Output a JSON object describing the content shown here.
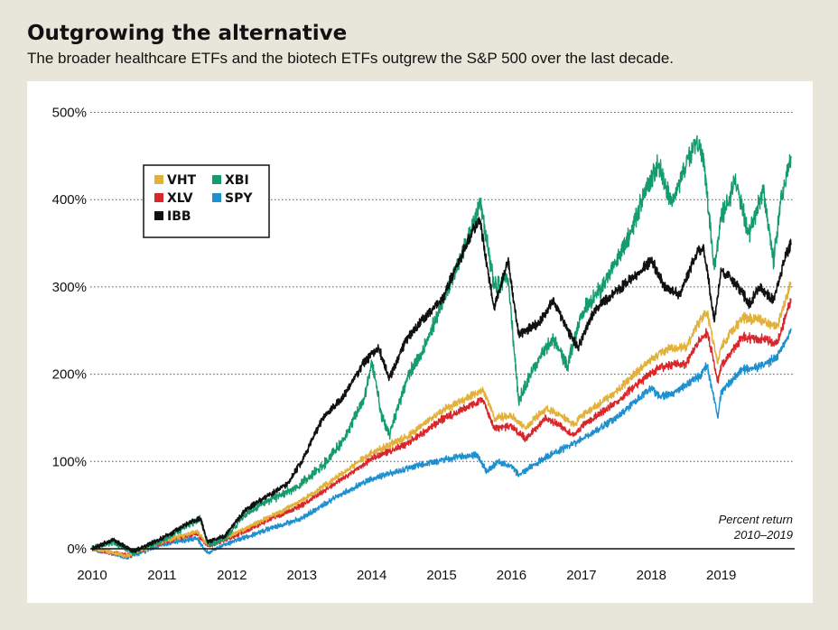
{
  "title": "Outgrowing the alternative",
  "subtitle": "The broader healthcare ETFs and the biotech ETFs outgrew the S&P 500 over the last decade.",
  "note_line1": "Percent return",
  "note_line2": "2010–2019",
  "chart_data": {
    "type": "line",
    "title": "Outgrowing the alternative",
    "subtitle": "The broader healthcare ETFs and the biotech ETFs outgrew the S&P 500 over the last decade.",
    "xlabel": "",
    "ylabel": "",
    "xlim": [
      2010,
      2020.05
    ],
    "ylim": [
      -15,
      520
    ],
    "y_ticks": [
      0,
      100,
      200,
      300,
      400,
      500
    ],
    "y_tick_labels": [
      "0%",
      "100%",
      "200%",
      "300%",
      "400%",
      "500%"
    ],
    "x_ticks": [
      2010,
      2011,
      2012,
      2013,
      2014,
      2015,
      2016,
      2017,
      2018,
      2019
    ],
    "x_tick_labels": [
      "2010",
      "2011",
      "2012",
      "2013",
      "2014",
      "2015",
      "2016",
      "2017",
      "2018",
      "2019"
    ],
    "grid": "horizontal dotted",
    "legend_position": "top-left",
    "annotation": "Percent return 2010–2019",
    "series": [
      {
        "name": "VHT",
        "color": "#e2b13c",
        "x": [
          2010.0,
          2010.5,
          2011.0,
          2011.5,
          2011.65,
          2011.9,
          2012.5,
          2013.0,
          2013.5,
          2014.0,
          2014.5,
          2015.0,
          2015.5,
          2015.6,
          2015.75,
          2016.0,
          2016.2,
          2016.5,
          2016.9,
          2017.0,
          2017.5,
          2018.0,
          2018.2,
          2018.5,
          2018.7,
          2018.8,
          2018.95,
          2019.0,
          2019.3,
          2019.6,
          2019.8,
          2020.0
        ],
        "y": [
          0,
          -8,
          8,
          20,
          5,
          12,
          35,
          55,
          82,
          110,
          128,
          158,
          178,
          182,
          150,
          152,
          138,
          162,
          142,
          152,
          180,
          218,
          228,
          232,
          262,
          270,
          212,
          232,
          265,
          262,
          255,
          305
        ]
      },
      {
        "name": "XLV",
        "color": "#d9262b",
        "x": [
          2010.0,
          2010.5,
          2011.0,
          2011.5,
          2011.65,
          2011.9,
          2012.5,
          2013.0,
          2013.5,
          2014.0,
          2014.5,
          2015.0,
          2015.5,
          2015.6,
          2015.75,
          2016.0,
          2016.2,
          2016.5,
          2016.9,
          2017.0,
          2017.5,
          2018.0,
          2018.2,
          2018.5,
          2018.7,
          2018.8,
          2018.95,
          2019.0,
          2019.3,
          2019.6,
          2019.8,
          2020.0
        ],
        "y": [
          0,
          -8,
          7,
          18,
          3,
          10,
          32,
          50,
          76,
          103,
          120,
          148,
          167,
          170,
          138,
          140,
          126,
          150,
          130,
          140,
          168,
          202,
          210,
          212,
          240,
          248,
          192,
          210,
          242,
          240,
          235,
          285
        ]
      },
      {
        "name": "IBB",
        "color": "#111111",
        "x": [
          2010.0,
          2010.3,
          2010.6,
          2011.0,
          2011.4,
          2011.55,
          2011.65,
          2011.9,
          2012.2,
          2012.5,
          2012.8,
          2013.0,
          2013.3,
          2013.6,
          2013.9,
          2014.1,
          2014.25,
          2014.5,
          2014.75,
          2015.0,
          2015.25,
          2015.45,
          2015.55,
          2015.75,
          2015.95,
          2016.1,
          2016.4,
          2016.6,
          2016.8,
          2016.95,
          2017.2,
          2017.5,
          2017.8,
          2018.0,
          2018.2,
          2018.4,
          2018.65,
          2018.75,
          2018.9,
          2019.0,
          2019.2,
          2019.4,
          2019.55,
          2019.75,
          2019.9,
          2020.0
        ],
        "y": [
          0,
          10,
          -3,
          12,
          30,
          35,
          8,
          15,
          45,
          60,
          75,
          100,
          150,
          175,
          215,
          230,
          195,
          240,
          265,
          285,
          330,
          365,
          375,
          275,
          330,
          245,
          260,
          285,
          250,
          230,
          275,
          295,
          315,
          330,
          300,
          290,
          340,
          345,
          260,
          320,
          305,
          280,
          300,
          285,
          330,
          350
        ]
      },
      {
        "name": "XBI",
        "color": "#159c6d",
        "x": [
          2010.0,
          2010.3,
          2010.6,
          2011.0,
          2011.4,
          2011.55,
          2011.65,
          2011.9,
          2012.2,
          2012.5,
          2012.8,
          2013.0,
          2013.3,
          2013.6,
          2013.9,
          2014.0,
          2014.15,
          2014.25,
          2014.5,
          2014.75,
          2015.0,
          2015.25,
          2015.45,
          2015.55,
          2015.75,
          2015.95,
          2016.1,
          2016.4,
          2016.6,
          2016.8,
          2017.0,
          2017.3,
          2017.5,
          2017.7,
          2017.9,
          2018.1,
          2018.3,
          2018.5,
          2018.65,
          2018.75,
          2018.9,
          2019.0,
          2019.2,
          2019.4,
          2019.6,
          2019.75,
          2019.85,
          2020.0
        ],
        "y": [
          0,
          8,
          -5,
          10,
          28,
          35,
          5,
          12,
          40,
          55,
          65,
          75,
          95,
          125,
          175,
          215,
          150,
          130,
          195,
          230,
          280,
          330,
          370,
          400,
          300,
          310,
          170,
          220,
          240,
          210,
          270,
          300,
          330,
          360,
          410,
          440,
          395,
          440,
          470,
          445,
          320,
          380,
          420,
          360,
          410,
          330,
          400,
          450
        ]
      },
      {
        "name": "SPY",
        "color": "#1e90d0",
        "x": [
          2010.0,
          2010.5,
          2011.0,
          2011.5,
          2011.65,
          2011.9,
          2012.5,
          2013.0,
          2013.5,
          2014.0,
          2014.5,
          2015.0,
          2015.5,
          2015.65,
          2015.8,
          2016.0,
          2016.1,
          2016.5,
          2017.0,
          2017.5,
          2018.0,
          2018.1,
          2018.3,
          2018.7,
          2018.8,
          2018.95,
          2019.0,
          2019.3,
          2019.6,
          2019.8,
          2020.0
        ],
        "y": [
          0,
          -10,
          5,
          12,
          -5,
          5,
          22,
          35,
          60,
          80,
          92,
          102,
          108,
          88,
          100,
          95,
          85,
          105,
          125,
          150,
          185,
          175,
          178,
          198,
          210,
          150,
          180,
          205,
          210,
          220,
          250
        ]
      }
    ]
  }
}
